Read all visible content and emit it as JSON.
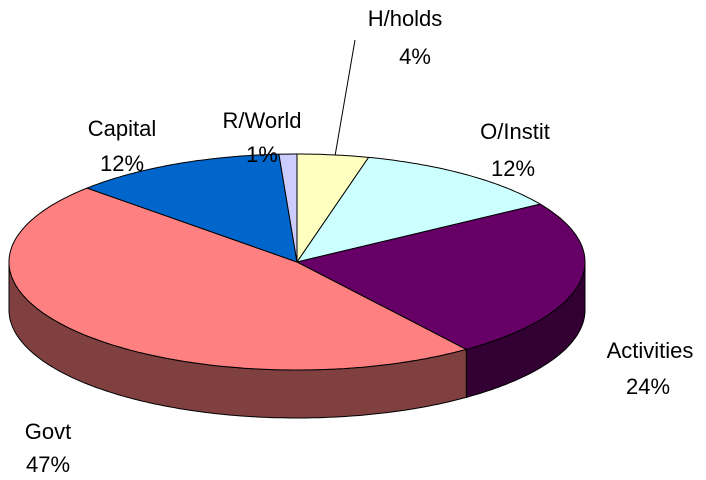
{
  "chart_data": {
    "type": "pie",
    "categories": [
      "H/holds",
      "O/Instit",
      "Activities",
      "Govt",
      "Capital",
      "R/World"
    ],
    "values": [
      4,
      12,
      24,
      47,
      12,
      1
    ],
    "value_labels": [
      "4%",
      "12%",
      "24%",
      "47%",
      "12%",
      "1%"
    ],
    "colors": [
      "#ffffc0",
      "#ccffff",
      "#660066",
      "#ff8080",
      "#0066cc",
      "#ccccff"
    ]
  }
}
